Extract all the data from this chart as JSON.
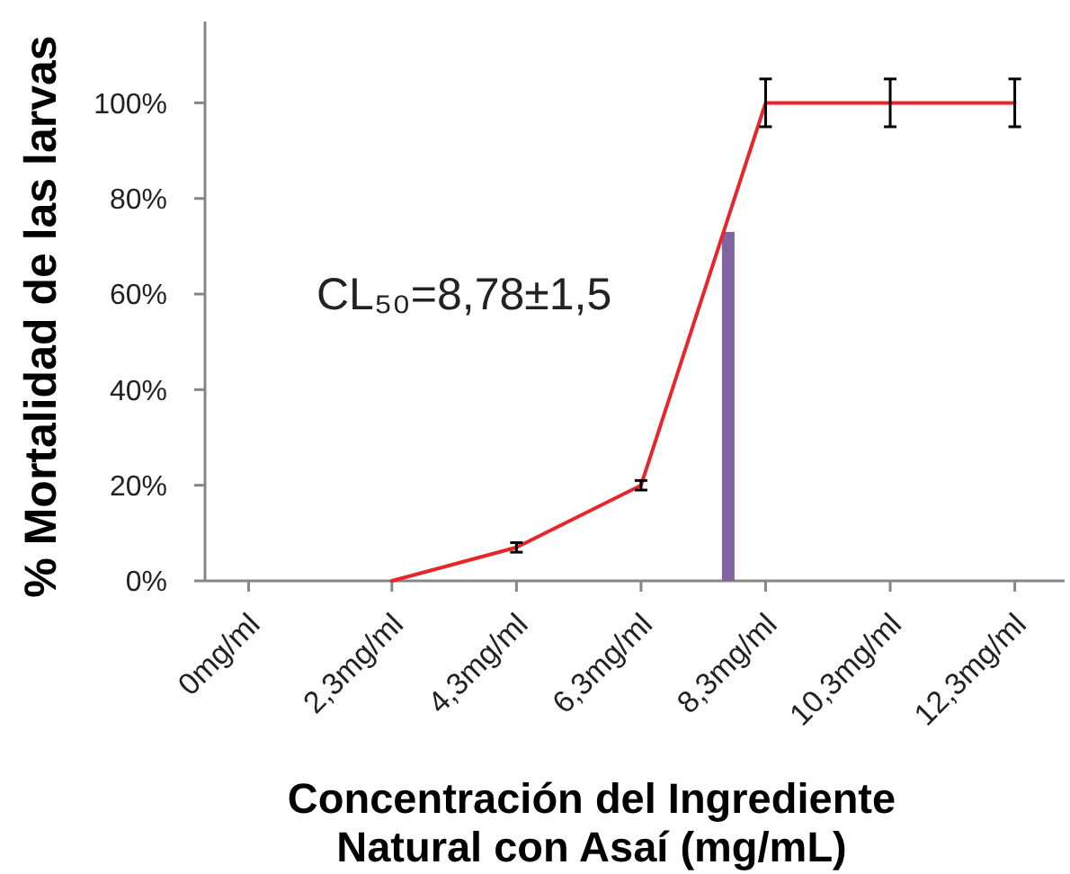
{
  "chart_data": {
    "type": "line",
    "xlabel": "Concentración del Ingrediente Natural con Asaí (mg/mL)",
    "ylabel": "% Mortalidad de las larvas",
    "annotations": [
      "CL₅₀=8,78±1,5"
    ],
    "xlim": [
      -0.7,
      13.1
    ],
    "xticks": [
      {
        "value": 0,
        "label": "0mg/ml"
      },
      {
        "value": 2.3,
        "label": "2,3mg/ml"
      },
      {
        "value": 4.3,
        "label": "4,3mg/ml"
      },
      {
        "value": 6.3,
        "label": "6,3mg/ml"
      },
      {
        "value": 8.3,
        "label": "8,3mg/ml"
      },
      {
        "value": 10.3,
        "label": "10,3mg/ml"
      },
      {
        "value": 12.3,
        "label": "12,3mg/ml"
      }
    ],
    "ylim": [
      0,
      117
    ],
    "yticks": [
      {
        "value": 0,
        "label": "0%"
      },
      {
        "value": 20,
        "label": "20%"
      },
      {
        "value": 40,
        "label": "40%"
      },
      {
        "value": 60,
        "label": "60%"
      },
      {
        "value": 80,
        "label": "80%"
      },
      {
        "value": 100,
        "label": "100%"
      }
    ],
    "series": [
      {
        "type": "bar",
        "color": "#8064a2",
        "x": [
          7.7
        ],
        "values": [
          73
        ]
      },
      {
        "color": "#e8252b",
        "x": [
          2.3,
          4.3,
          6.3,
          8.3,
          10.3,
          12.3
        ],
        "values": [
          0,
          7,
          20,
          100,
          100,
          100
        ],
        "errors": [
          null,
          1,
          1,
          5,
          5,
          5
        ]
      }
    ]
  }
}
